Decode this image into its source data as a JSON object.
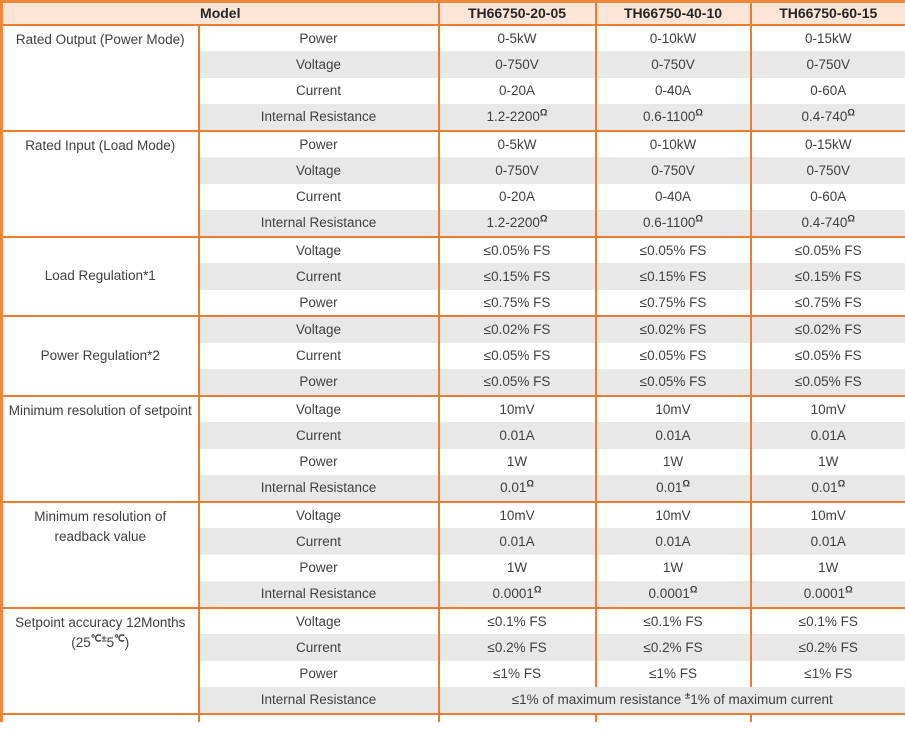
{
  "theme": {
    "accent": "#ED7C31",
    "outer": "#F0883C",
    "header-bg": "#FBE5D6",
    "stripe": "#E8E8E8",
    "text": "#3F3F3F"
  },
  "table": {
    "header": {
      "model_label": "Model",
      "columns": [
        "TH66750-20-05",
        "TH66750-40-10",
        "TH66750-60-15"
      ]
    },
    "sections": [
      {
        "category": "Rated Output (Power Mode)",
        "rows": [
          {
            "param": "Power",
            "values": [
              "0-5kW",
              "0-10kW",
              "0-15kW"
            ]
          },
          {
            "param": "Voltage",
            "values": [
              "0-750V",
              "0-750V",
              "0-750V"
            ]
          },
          {
            "param": "Current",
            "values": [
              "0-20A",
              "0-40A",
              "0-60A"
            ]
          },
          {
            "param": "Internal Resistance",
            "values": [
              [
                "1.2-2200",
                {
                  "sup": "Ω"
                }
              ],
              [
                "0.6-1100",
                {
                  "sup": "Ω"
                }
              ],
              [
                "0.4-740",
                {
                  "sup": "Ω"
                }
              ]
            ]
          }
        ]
      },
      {
        "category": "Rated Input (Load Mode)",
        "rows": [
          {
            "param": "Power",
            "values": [
              "0-5kW",
              "0-10kW",
              "0-15kW"
            ]
          },
          {
            "param": "Voltage",
            "values": [
              "0-750V",
              "0-750V",
              "0-750V"
            ]
          },
          {
            "param": "Current",
            "values": [
              "0-20A",
              "0-40A",
              "0-60A"
            ]
          },
          {
            "param": "Internal Resistance",
            "values": [
              [
                "1.2-2200",
                {
                  "sup": "Ω"
                }
              ],
              [
                "0.6-1100",
                {
                  "sup": "Ω"
                }
              ],
              [
                "0.4-740",
                {
                  "sup": "Ω"
                }
              ]
            ]
          }
        ]
      },
      {
        "category": "Load Regulation*1",
        "rows": [
          {
            "param": "Voltage",
            "values": [
              "≤0.05% FS",
              "≤0.05% FS",
              "≤0.05% FS"
            ]
          },
          {
            "param": "Current",
            "values": [
              "≤0.15% FS",
              "≤0.15% FS",
              "≤0.15% FS"
            ]
          },
          {
            "param": "Power",
            "values": [
              "≤0.75% FS",
              "≤0.75% FS",
              "≤0.75% FS"
            ]
          }
        ]
      },
      {
        "category": "Power Regulation*2",
        "rows": [
          {
            "param": "Voltage",
            "values": [
              "≤0.02% FS",
              "≤0.02% FS",
              "≤0.02% FS"
            ]
          },
          {
            "param": "Current",
            "values": [
              "≤0.05% FS",
              "≤0.05% FS",
              "≤0.05% FS"
            ]
          },
          {
            "param": "Power",
            "values": [
              "≤0.05% FS",
              "≤0.05% FS",
              "≤0.05% FS"
            ]
          }
        ]
      },
      {
        "category": "Minimum resolution of setpoint",
        "rows": [
          {
            "param": "Voltage",
            "values": [
              "10mV",
              "10mV",
              "10mV"
            ]
          },
          {
            "param": "Current",
            "values": [
              "0.01A",
              "0.01A",
              "0.01A"
            ]
          },
          {
            "param": "Power",
            "values": [
              "1W",
              "1W",
              "1W"
            ]
          },
          {
            "param": "Internal Resistance",
            "values": [
              [
                "0.01",
                {
                  "sup": "Ω"
                }
              ],
              [
                "0.01",
                {
                  "sup": "Ω"
                }
              ],
              [
                "0.01",
                {
                  "sup": "Ω"
                }
              ]
            ]
          }
        ]
      },
      {
        "category": "Minimum resolution of readback value",
        "rows": [
          {
            "param": "Voltage",
            "values": [
              "10mV",
              "10mV",
              "10mV"
            ]
          },
          {
            "param": "Current",
            "values": [
              "0.01A",
              "0.01A",
              "0.01A"
            ]
          },
          {
            "param": "Power",
            "values": [
              "1W",
              "1W",
              "1W"
            ]
          },
          {
            "param": "Internal Resistance",
            "values": [
              [
                "0.0001",
                {
                  "sup": "Ω"
                }
              ],
              [
                "0.0001",
                {
                  "sup": "Ω"
                }
              ],
              [
                "0.0001",
                {
                  "sup": "Ω"
                }
              ]
            ]
          }
        ]
      },
      {
        "category": [
          [
            "Setpoint accuracy 12Months"
          ],
          [
            "(25",
            {
              "sup": "℃±"
            },
            "5",
            {
              "sup": "℃"
            },
            ")"
          ]
        ],
        "rows": [
          {
            "param": "Voltage",
            "values": [
              "≤0.1% FS",
              "≤0.1% FS",
              "≤0.1% FS"
            ]
          },
          {
            "param": "Current",
            "values": [
              "≤0.2% FS",
              "≤0.2% FS",
              "≤0.2% FS"
            ]
          },
          {
            "param": "Power",
            "values": [
              "≤1% FS",
              "≤1% FS",
              "≤1% FS"
            ]
          },
          {
            "param": "Internal Resistance",
            "values_span": [
              "≤1% of maximum resistance ",
              {
                "sup": "±"
              },
              "1% of maximum current"
            ]
          }
        ]
      }
    ]
  }
}
